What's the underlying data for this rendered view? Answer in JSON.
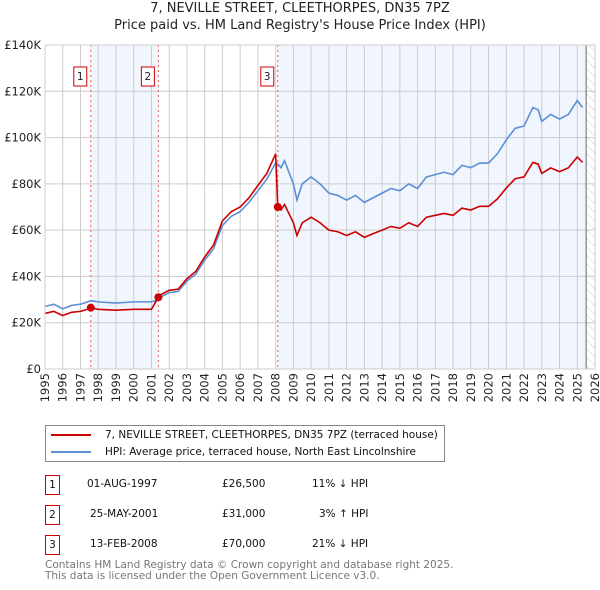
{
  "title": "7, NEVILLE STREET, CLEETHORPES, DN35 7PZ",
  "subtitle": "Price paid vs. HM Land Registry's House Price Index (HPI)",
  "chart_data": {
    "type": "line",
    "ylim": [
      0,
      140000
    ],
    "xlim": [
      1995,
      2026
    ],
    "yticks": [
      0,
      20000,
      40000,
      60000,
      80000,
      100000,
      120000,
      140000
    ],
    "ytick_labels": [
      "£0",
      "£20K",
      "£40K",
      "£60K",
      "£80K",
      "£100K",
      "£120K",
      "£140K"
    ],
    "xticks": [
      "1995",
      "1996",
      "1997",
      "1998",
      "1999",
      "2000",
      "2001",
      "2002",
      "2003",
      "2004",
      "2005",
      "2006",
      "2007",
      "2008",
      "2009",
      "2010",
      "2011",
      "2012",
      "2013",
      "2014",
      "2015",
      "2016",
      "2017",
      "2018",
      "2019",
      "2020",
      "2021",
      "2022",
      "2023",
      "2024",
      "2025",
      "2026"
    ],
    "grid": true,
    "x": [
      1995,
      1995.5,
      1996,
      1996.5,
      1997,
      1997.6,
      1998,
      1999,
      2000,
      2001,
      2001.39,
      2001.5,
      2002,
      2002.5,
      2003,
      2003.5,
      2004,
      2004.5,
      2005,
      2005.5,
      2006,
      2006.5,
      2007,
      2007.5,
      2008,
      2008.12,
      2008.3,
      2008.5,
      2009,
      2009.2,
      2009.5,
      2010,
      2010.5,
      2011,
      2011.5,
      2012,
      2012.5,
      2013,
      2013.5,
      2014,
      2014.5,
      2015,
      2015.5,
      2016,
      2016.5,
      2017,
      2017.5,
      2018,
      2018.5,
      2019,
      2019.5,
      2020,
      2020.5,
      2021,
      2021.5,
      2022,
      2022.5,
      2022.8,
      2023,
      2023.5,
      2024,
      2024.5,
      2025,
      2025.3
    ],
    "series": [
      {
        "name": "7, NEVILLE STREET, CLEETHORPES, DN35 7PZ (terraced house)",
        "color": "#cc0000",
        "values": [
          24,
          24.9,
          23.1,
          24.5,
          24.9,
          26.3,
          25.8,
          25.4,
          25.8,
          25.8,
          31,
          32,
          34,
          34.5,
          39,
          42.2,
          48.4,
          53.6,
          64,
          68,
          70,
          74,
          79.3,
          84.5,
          93,
          70,
          68.7,
          71.1,
          63.2,
          57.7,
          63.2,
          65.6,
          63.2,
          60,
          59.3,
          57.7,
          59.3,
          56.9,
          58.5,
          60,
          61.6,
          60.8,
          63.2,
          61.6,
          65.6,
          66.4,
          67.2,
          66.4,
          69.5,
          68.7,
          70.3,
          70.3,
          73.5,
          78.2,
          82.2,
          83,
          89.3,
          88.5,
          84.5,
          86.9,
          85.3,
          86.9,
          91.6,
          89.3
        ]
      },
      {
        "name": "HPI: Average price, terraced house, North East Lincolnshire",
        "color": "#5b8fd6",
        "values": [
          27,
          28,
          26,
          27.5,
          28,
          29.5,
          29,
          28.5,
          29,
          29,
          30,
          31,
          33,
          33.5,
          38,
          41,
          47,
          52,
          62,
          66,
          68,
          72,
          77,
          82,
          89,
          88.6,
          87,
          90,
          80,
          73,
          80,
          83,
          80,
          76,
          75,
          73,
          75,
          72,
          74,
          76,
          78,
          77,
          80,
          78,
          83,
          84,
          85,
          84,
          88,
          87,
          89,
          89,
          93,
          99,
          104,
          105,
          113,
          112,
          107,
          110,
          108,
          110,
          116,
          113
        ]
      }
    ],
    "value_unit": "thousands GBP",
    "sales": [
      {
        "label": "1",
        "x": 1997.58,
        "date": "01-AUG-1997",
        "price": "£26,500",
        "value": 26.5,
        "hpi": "11% ↓ HPI"
      },
      {
        "label": "2",
        "x": 2001.39,
        "date": "25-MAY-2001",
        "price": "£31,000",
        "value": 31,
        "hpi": "3% ↑ HPI"
      },
      {
        "label": "3",
        "x": 2008.12,
        "date": "13-FEB-2008",
        "price": "£70,000",
        "value": 70,
        "hpi": "21% ↓ HPI"
      }
    ],
    "data_end": 2025.5
  },
  "legend": {
    "property": "7, NEVILLE STREET, CLEETHORPES, DN35 7PZ (terraced house)",
    "hpi": "HPI: Average price, terraced house, North East Lincolnshire"
  },
  "footer": {
    "line1": "Contains HM Land Registry data © Crown copyright and database right 2025.",
    "line2": "This data is licensed under the Open Government Licence v3.0."
  }
}
